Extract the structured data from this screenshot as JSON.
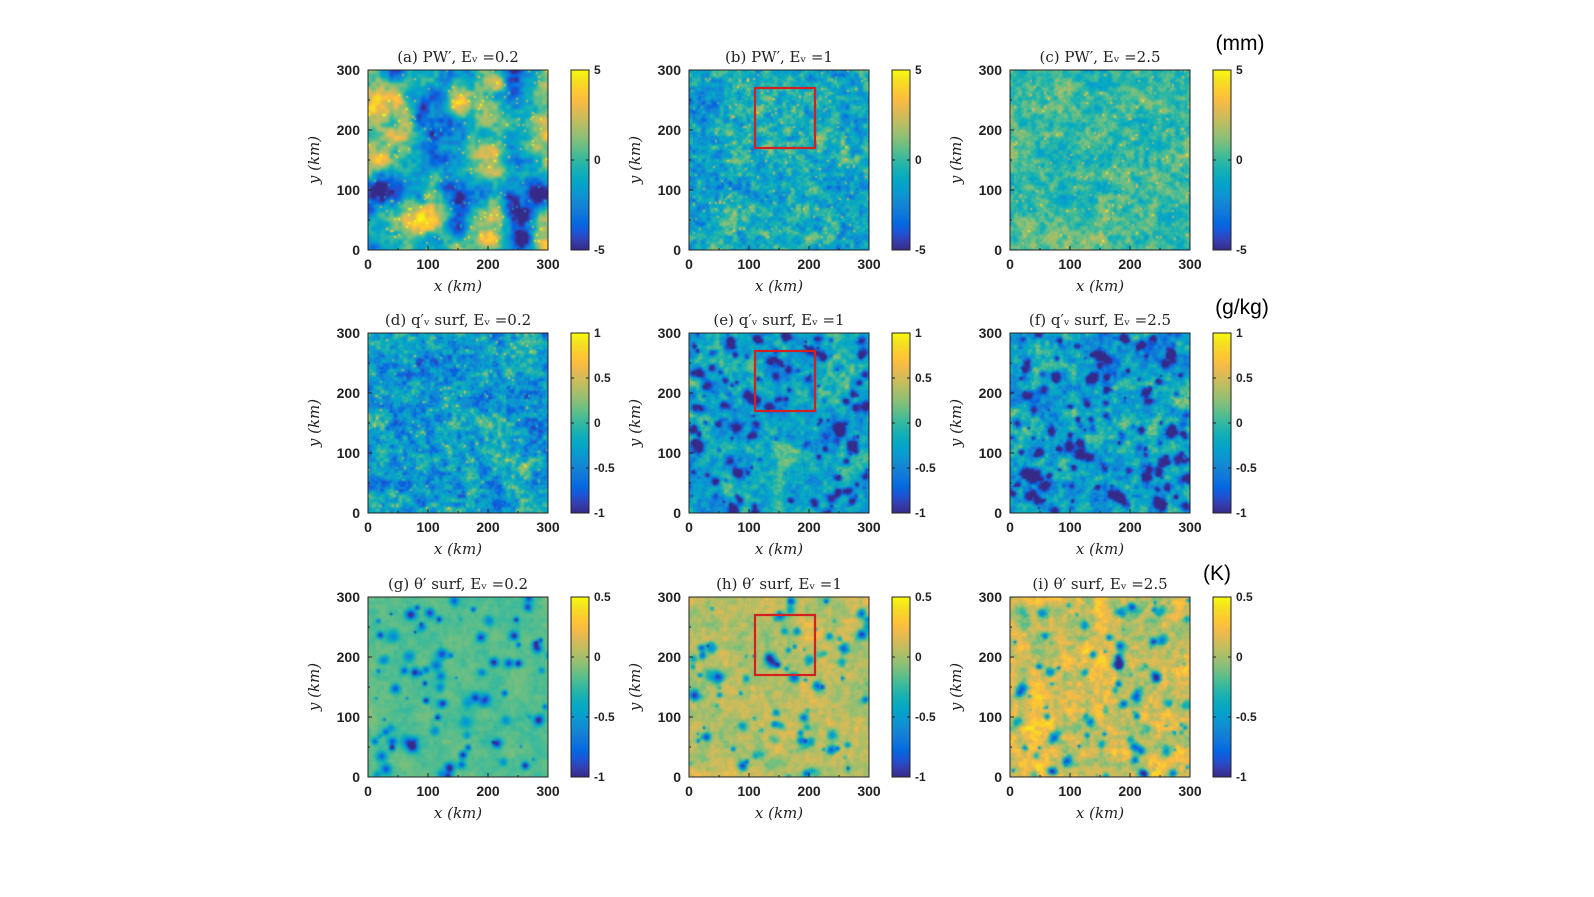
{
  "chart_data": {
    "type": "heatmap",
    "colormap": "parula",
    "x_label": "x (km)",
    "y_label": "y (km)",
    "x_range": [
      0,
      300
    ],
    "y_range": [
      0,
      300
    ],
    "axis_ticks": [
      "0",
      "100",
      "200",
      "300"
    ],
    "rows": [
      {
        "unit": "(mm)",
        "clim": [
          -5,
          5
        ],
        "colorbar_ticks": [
          "5",
          "0",
          "-5"
        ],
        "panels": [
          {
            "title": "(a) PW′,  Eᵥ =0.2",
            "pattern": "blobs",
            "mean": -0.05,
            "std": 0.34
          },
          {
            "title": "(b) PW′,  Eᵥ =1",
            "pattern": "speckle",
            "mean": -0.1,
            "std": 0.18,
            "red_box_km": [
              110,
              210,
              170,
              270
            ]
          },
          {
            "title": "(c) PW′,  Eᵥ =2.5",
            "pattern": "speckle",
            "mean": 0.0,
            "std": 0.13
          }
        ]
      },
      {
        "unit": "(g/kg)",
        "clim": [
          -1,
          1
        ],
        "colorbar_ticks": [
          "1",
          "0.5",
          "0",
          "-0.5",
          "-1"
        ],
        "panels": [
          {
            "title": "(d) q′ᵥ surf,  Eᵥ =0.2",
            "pattern": "speckle",
            "mean": -0.15,
            "std": 0.2
          },
          {
            "title": "(e) q′ᵥ surf,  Eᵥ =1",
            "pattern": "cells",
            "mean": -0.1,
            "std": 0.22,
            "red_box_km": [
              110,
              210,
              170,
              270
            ]
          },
          {
            "title": "(f) q′ᵥ surf,  Eᵥ =2.5",
            "pattern": "cells",
            "mean": -0.1,
            "std": 0.25
          }
        ]
      },
      {
        "unit": "(K)",
        "clim": [
          -1,
          0.5
        ],
        "colorbar_ticks": [
          "0.5",
          "0",
          "-0.5",
          "-1"
        ],
        "panels": [
          {
            "title": "(g) θ′ surf,  Eᵥ =0.2",
            "pattern": "pools",
            "mean": 0.05,
            "std": 0.05
          },
          {
            "title": "(h) θ′ surf,  Eᵥ =1",
            "pattern": "pools",
            "mean": 0.2,
            "std": 0.12,
            "red_box_km": [
              110,
              210,
              170,
              270
            ]
          },
          {
            "title": "(i) θ′ surf,  Eᵥ =2.5",
            "pattern": "pools",
            "mean": 0.25,
            "std": 0.18
          }
        ]
      }
    ]
  }
}
